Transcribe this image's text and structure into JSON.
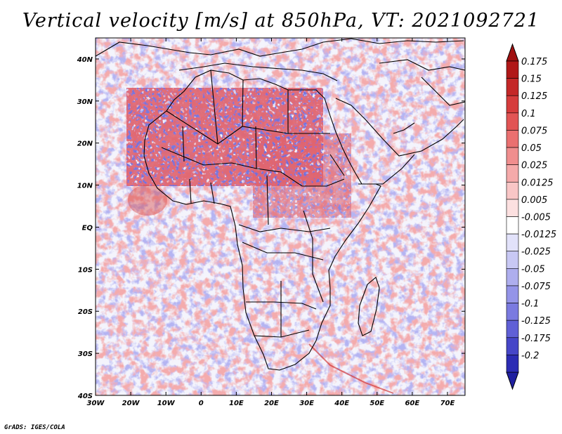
{
  "title": "Vertical velocity [m/s] at 850hPa, VT: 2021092721",
  "credit": "GrADS: IGES/COLA",
  "map": {
    "lon_range": [
      -30,
      75
    ],
    "lat_range": [
      -40,
      45
    ],
    "lon_ticks": [
      {
        "value": -30,
        "label": "30W"
      },
      {
        "value": -20,
        "label": "20W"
      },
      {
        "value": -10,
        "label": "10W"
      },
      {
        "value": 0,
        "label": "0"
      },
      {
        "value": 10,
        "label": "10E"
      },
      {
        "value": 20,
        "label": "20E"
      },
      {
        "value": 30,
        "label": "30E"
      },
      {
        "value": 40,
        "label": "40E"
      },
      {
        "value": 50,
        "label": "50E"
      },
      {
        "value": 60,
        "label": "60E"
      },
      {
        "value": 70,
        "label": "70E"
      }
    ],
    "lat_ticks": [
      {
        "value": 40,
        "label": "40N"
      },
      {
        "value": 30,
        "label": "30N"
      },
      {
        "value": 20,
        "label": "20N"
      },
      {
        "value": 10,
        "label": "10N"
      },
      {
        "value": 0,
        "label": "EQ"
      },
      {
        "value": -10,
        "label": "10S"
      },
      {
        "value": -20,
        "label": "20S"
      },
      {
        "value": -30,
        "label": "30S"
      },
      {
        "value": -40,
        "label": "40S"
      }
    ]
  },
  "colorbar": {
    "levels": [
      {
        "label": "0.175",
        "color": "#b01818"
      },
      {
        "label": "0.15",
        "color": "#c42828"
      },
      {
        "label": "0.125",
        "color": "#d63c3c"
      },
      {
        "label": "0.1",
        "color": "#e25454"
      },
      {
        "label": "0.075",
        "color": "#ea7070"
      },
      {
        "label": "0.05",
        "color": "#f08e8e"
      },
      {
        "label": "0.025",
        "color": "#f5aaaa"
      },
      {
        "label": "0.0125",
        "color": "#f9c6c6"
      },
      {
        "label": "0.005",
        "color": "#fce0e0"
      },
      {
        "label": "-0.005",
        "color": "#ffffff"
      },
      {
        "label": "-0.0125",
        "color": "#e2e2fa"
      },
      {
        "label": "-0.025",
        "color": "#c8c8f4"
      },
      {
        "label": "-0.05",
        "color": "#aeaeee"
      },
      {
        "label": "-0.075",
        "color": "#9494e8"
      },
      {
        "label": "-0.1",
        "color": "#7a7ae0"
      },
      {
        "label": "-0.125",
        "color": "#6060d6"
      },
      {
        "label": "-0.175",
        "color": "#4646c8"
      },
      {
        "label": "-0.2",
        "color": "#2c2cb4"
      }
    ],
    "top_color": "#a01010",
    "bottom_color": "#2020a0"
  }
}
